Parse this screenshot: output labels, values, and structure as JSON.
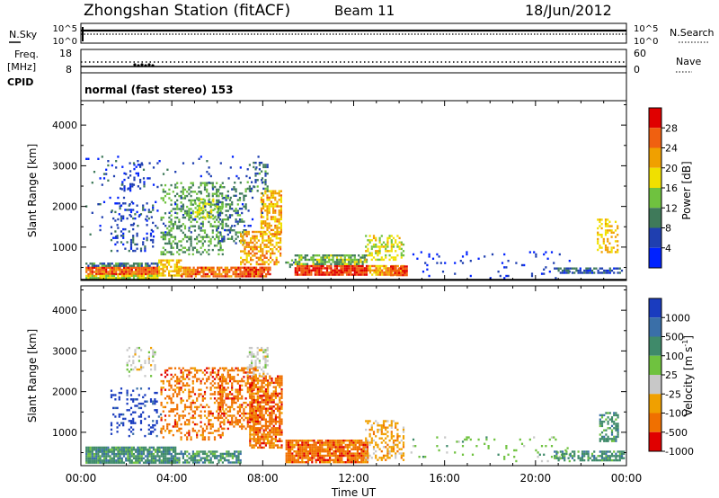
{
  "header": {
    "station": "Zhongshan Station (fitACF)",
    "beam": "Beam 11",
    "date": "18/Jun/2012"
  },
  "strips": {
    "nsky": {
      "label": "N.Sky",
      "tick_top": "10^5",
      "tick_bottom": "10^0",
      "right_label": "N.Search",
      "right_tick_top": "10^5",
      "right_tick_bottom": "10^0"
    },
    "freq": {
      "label_line1": "Freq.",
      "label_line2": "[MHz]",
      "tick_top": "18",
      "tick_bottom": "8",
      "right_label": "Nave",
      "right_tick_top": "60",
      "right_tick_bottom": "0"
    },
    "cpid": {
      "label": "CPID",
      "text": "normal (fast stereo) 153"
    }
  },
  "chart_data": [
    {
      "type": "heatmap",
      "name": "power",
      "xlabel": "Time UT",
      "ylabel": "Slant Range [km]",
      "x_ticks": [
        "00:00",
        "04:00",
        "08:00",
        "12:00",
        "16:00",
        "20:00",
        "00:00"
      ],
      "x_range_hours": [
        0,
        24
      ],
      "y_ticks": [
        1000,
        2000,
        3000,
        4000
      ],
      "y_range_km": [
        180,
        4600
      ],
      "colorbar": {
        "label": "Power [dB]",
        "ticks": [
          "4",
          "8",
          "12",
          "16",
          "20",
          "24",
          "28"
        ],
        "range": [
          0,
          32
        ],
        "colors": [
          "#0022ff",
          "#1f3fb0",
          "#3f7a5a",
          "#6fc23f",
          "#f0e000",
          "#f0a000",
          "#f06010",
          "#e00000"
        ]
      },
      "regions": [
        {
          "t": [
            0.2,
            3.4
          ],
          "r": [
            320,
            520
          ],
          "v": 26,
          "d": 0.95
        },
        {
          "t": [
            0.2,
            3.4
          ],
          "r": [
            250,
            320
          ],
          "v": 17,
          "d": 0.9
        },
        {
          "t": [
            0.2,
            3.4
          ],
          "r": [
            520,
            620
          ],
          "v": 9,
          "d": 0.75
        },
        {
          "t": [
            3.4,
            4.4
          ],
          "r": [
            300,
            700
          ],
          "v": 20,
          "d": 0.7
        },
        {
          "t": [
            4.4,
            6.8
          ],
          "r": [
            280,
            520
          ],
          "v": 25,
          "d": 0.8
        },
        {
          "t": [
            6.8,
            8.3
          ],
          "r": [
            280,
            520
          ],
          "v": 27,
          "d": 0.9
        },
        {
          "t": [
            1.3,
            3.2
          ],
          "r": [
            900,
            2100
          ],
          "v": 6,
          "d": 0.18
        },
        {
          "t": [
            1.7,
            2.8
          ],
          "r": [
            2400,
            3050
          ],
          "v": 5,
          "d": 0.25
        },
        {
          "t": [
            3.5,
            6.2
          ],
          "r": [
            800,
            2600
          ],
          "v": 12,
          "d": 0.35
        },
        {
          "t": [
            5.0,
            6.0
          ],
          "r": [
            1700,
            2200
          ],
          "v": 16,
          "d": 0.45
        },
        {
          "t": [
            6.0,
            7.3
          ],
          "r": [
            1100,
            2500
          ],
          "v": 10,
          "d": 0.3
        },
        {
          "t": [
            7.0,
            8.8
          ],
          "r": [
            600,
            1400
          ],
          "v": 22,
          "d": 0.55
        },
        {
          "t": [
            7.9,
            8.8
          ],
          "r": [
            1300,
            2400
          ],
          "v": 21,
          "d": 0.6
        },
        {
          "t": [
            7.3,
            8.2
          ],
          "r": [
            2400,
            3100
          ],
          "v": 9,
          "d": 0.3
        },
        {
          "t": [
            8.9,
            9.4
          ],
          "r": [
            500,
            700
          ],
          "v": 10,
          "d": 0.6
        },
        {
          "t": [
            9.4,
            12.6
          ],
          "r": [
            300,
            560
          ],
          "v": 28,
          "d": 0.92
        },
        {
          "t": [
            9.4,
            12.6
          ],
          "r": [
            560,
            820
          ],
          "v": 13,
          "d": 0.8
        },
        {
          "t": [
            12.6,
            14.2
          ],
          "r": [
            300,
            560
          ],
          "v": 22,
          "d": 0.8
        },
        {
          "t": [
            12.5,
            14.2
          ],
          "r": [
            700,
            1300
          ],
          "v": 17,
          "d": 0.45
        },
        {
          "t": [
            13.6,
            14.3
          ],
          "r": [
            300,
            550
          ],
          "v": 29,
          "d": 0.8
        },
        {
          "t": [
            14.5,
            21.5
          ],
          "r": [
            250,
            900
          ],
          "v": 4,
          "d": 0.06
        },
        {
          "t": [
            20.8,
            23.9
          ],
          "r": [
            350,
            500
          ],
          "v": 7,
          "d": 0.65
        },
        {
          "t": [
            22.7,
            23.6
          ],
          "r": [
            900,
            1700
          ],
          "v": 20,
          "d": 0.45
        },
        {
          "t": [
            0.2,
            8.0
          ],
          "r": [
            1200,
            3300
          ],
          "v": 6,
          "d": 0.03
        }
      ]
    },
    {
      "type": "heatmap",
      "name": "velocity",
      "xlabel": "Time UT",
      "ylabel": "Slant Range [km]",
      "x_ticks": [
        "00:00",
        "04:00",
        "08:00",
        "12:00",
        "16:00",
        "20:00",
        "00:00"
      ],
      "x_range_hours": [
        0,
        24
      ],
      "y_ticks": [
        1000,
        2000,
        3000,
        4000
      ],
      "y_range_km": [
        180,
        4600
      ],
      "colorbar": {
        "label": "Velocity [m s",
        "label_superscript": "-1",
        "label_close": "]",
        "ticks": [
          "1000",
          "500",
          "100",
          "25",
          "-25",
          "-100",
          "-500",
          "-1000"
        ],
        "colors": [
          "#1a3cbf",
          "#3a6fa8",
          "#3f8a6a",
          "#6fc23f",
          "#c8c8c8",
          "#f0a000",
          "#f07000",
          "#e00000"
        ]
      },
      "regions": [
        {
          "t": [
            0.2,
            4.2
          ],
          "r": [
            250,
            650
          ],
          "v": 2,
          "d": 0.9
        },
        {
          "t": [
            4.2,
            7.0
          ],
          "r": [
            250,
            550
          ],
          "v": 2,
          "d": 0.7
        },
        {
          "t": [
            1.3,
            3.5
          ],
          "r": [
            900,
            2100
          ],
          "v": 0,
          "d": 0.2
        },
        {
          "t": [
            2.0,
            3.3
          ],
          "r": [
            2400,
            3100
          ],
          "v": 4,
          "d": 0.2
        },
        {
          "t": [
            3.5,
            6.2
          ],
          "r": [
            800,
            2600
          ],
          "v": 6,
          "d": 0.35
        },
        {
          "t": [
            6.0,
            7.8
          ],
          "r": [
            1100,
            2600
          ],
          "v": 6,
          "d": 0.45
        },
        {
          "t": [
            7.4,
            8.8
          ],
          "r": [
            600,
            2400
          ],
          "v": 6,
          "d": 0.7
        },
        {
          "t": [
            7.3,
            8.2
          ],
          "r": [
            2400,
            3100
          ],
          "v": 4,
          "d": 0.4
        },
        {
          "t": [
            9.0,
            12.6
          ],
          "r": [
            250,
            820
          ],
          "v": 6,
          "d": 0.85
        },
        {
          "t": [
            12.5,
            14.2
          ],
          "r": [
            300,
            1300
          ],
          "v": 5,
          "d": 0.45
        },
        {
          "t": [
            14.5,
            21.5
          ],
          "r": [
            300,
            900
          ],
          "v": 3,
          "d": 0.05
        },
        {
          "t": [
            20.8,
            23.9
          ],
          "r": [
            300,
            550
          ],
          "v": 2,
          "d": 0.6
        },
        {
          "t": [
            22.8,
            23.6
          ],
          "r": [
            800,
            1500
          ],
          "v": 2,
          "d": 0.5
        }
      ]
    }
  ]
}
